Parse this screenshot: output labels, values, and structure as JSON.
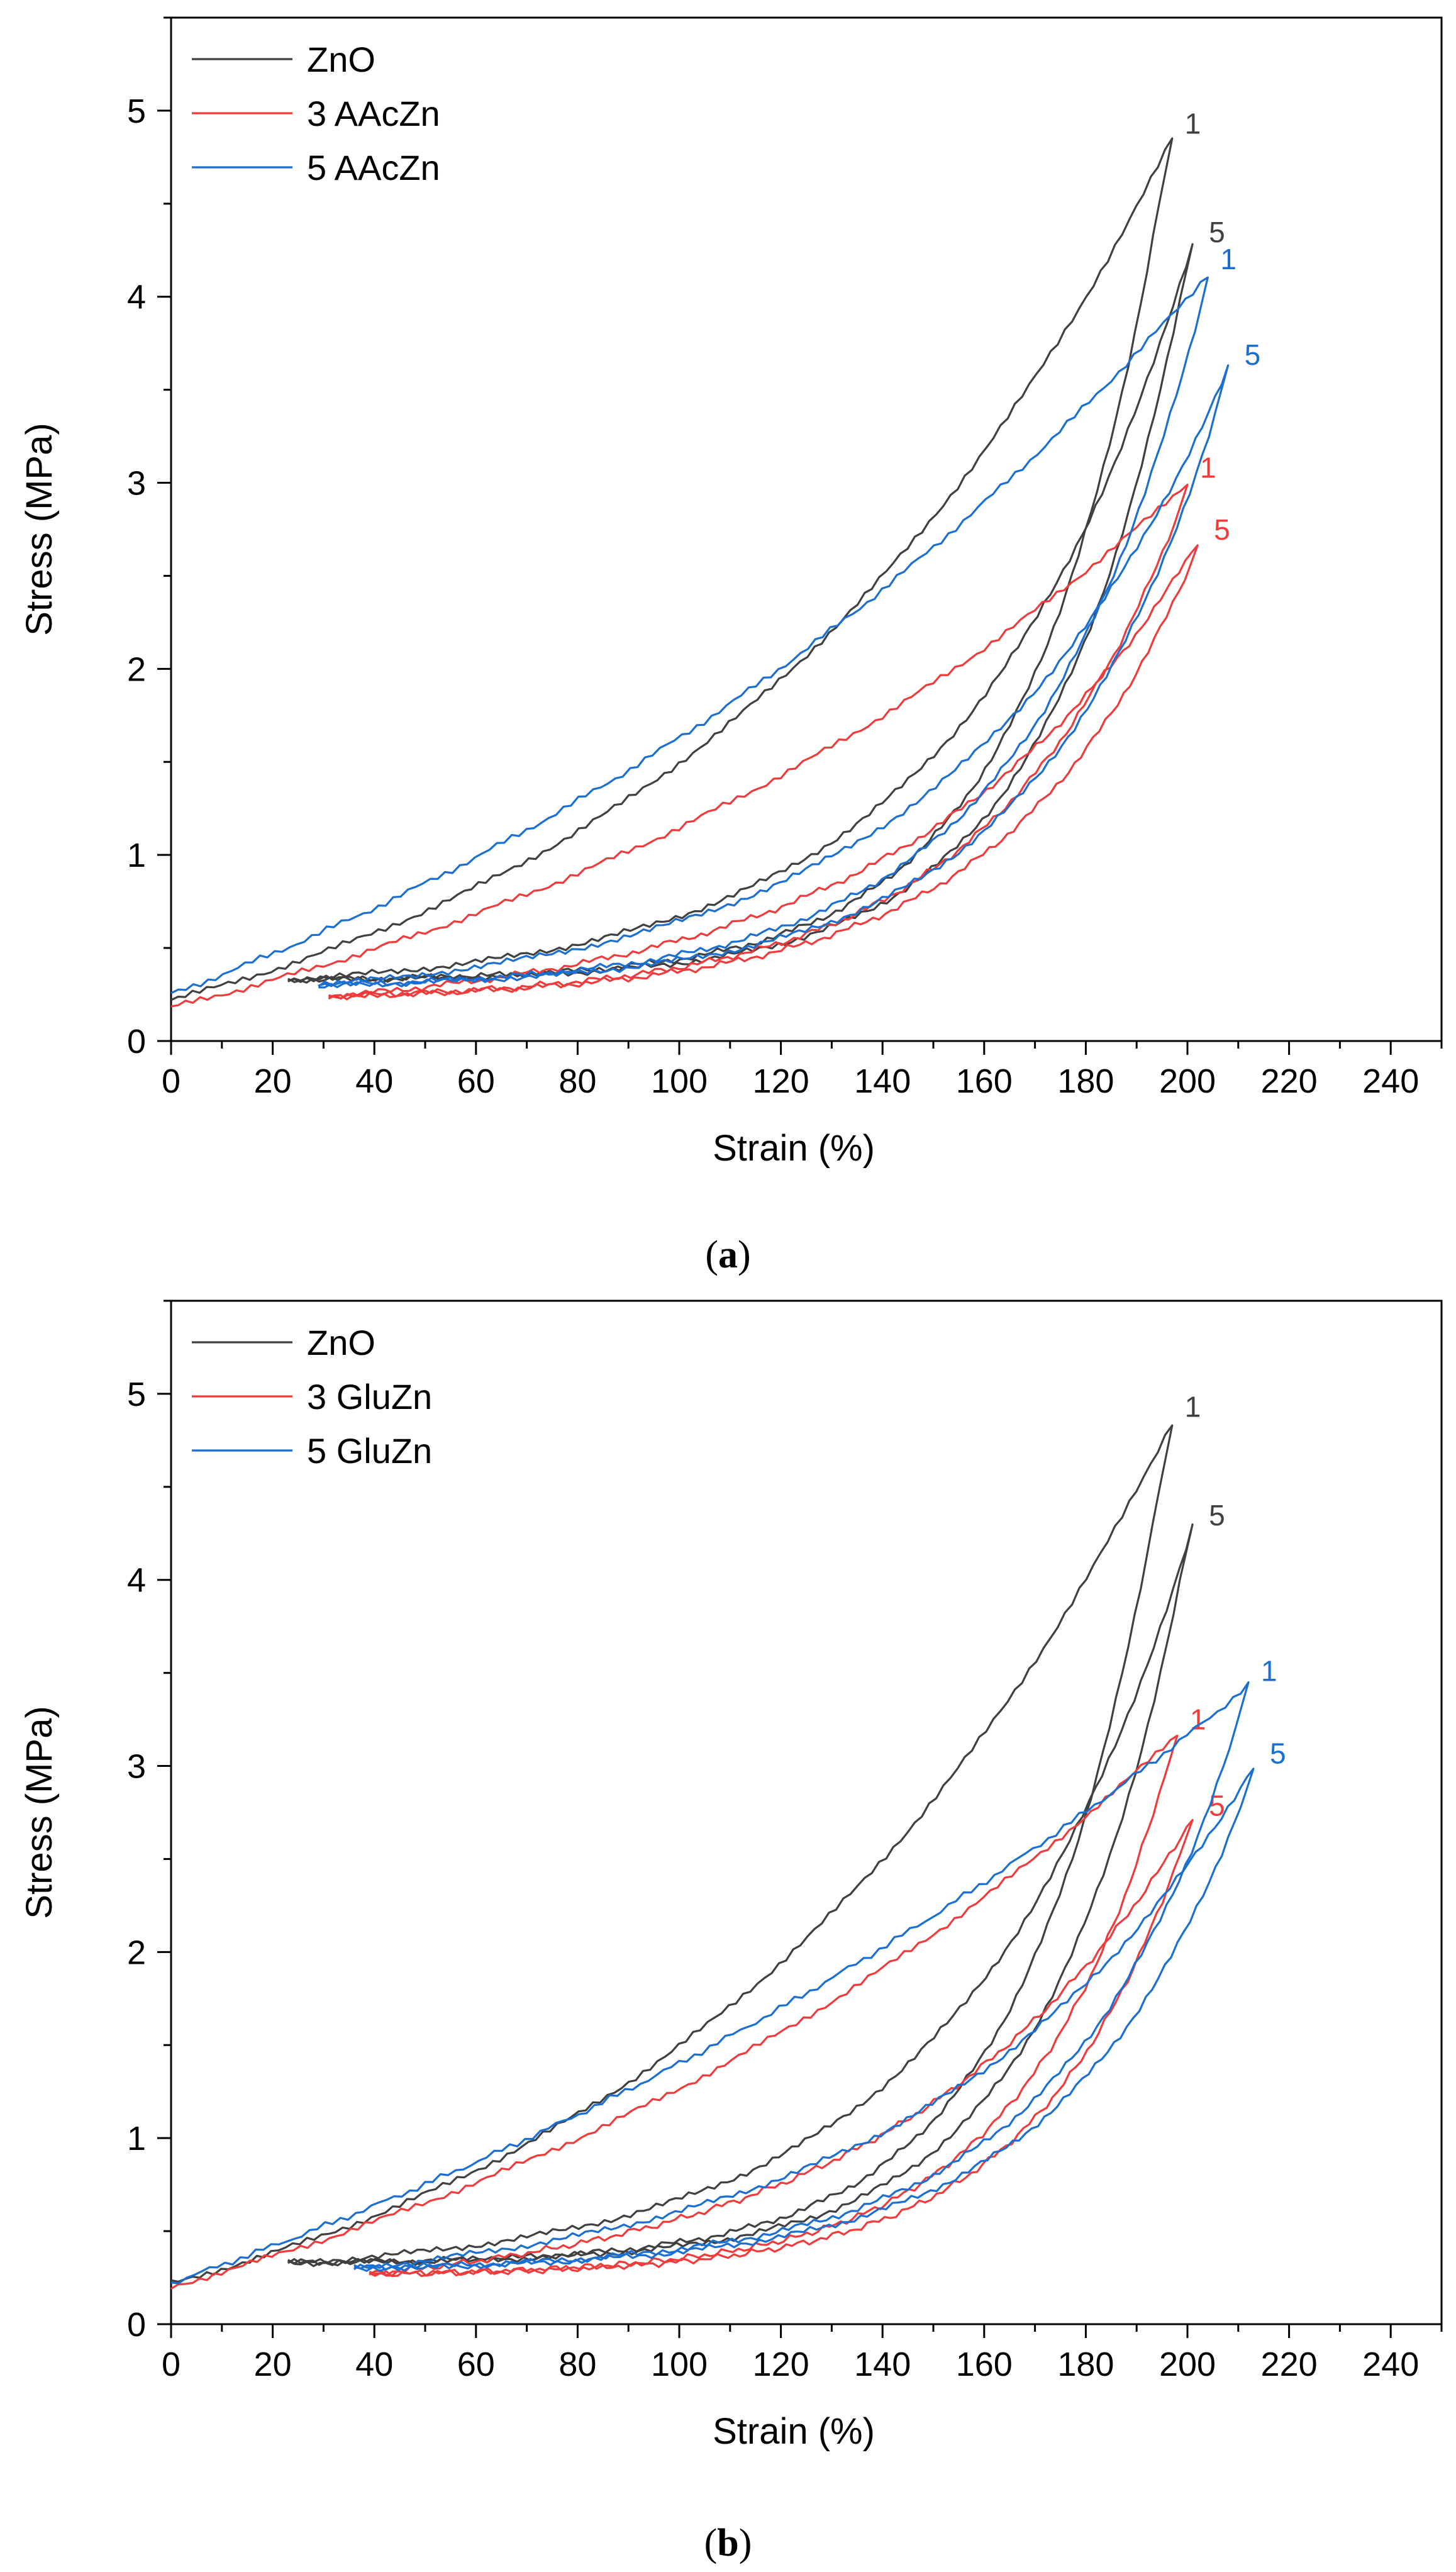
{
  "chart_data": [
    {
      "type": "line",
      "panel_label": "a",
      "xlabel": "Strain (%)",
      "ylabel": "Stress (MPa)",
      "xlim": [
        0,
        250
      ],
      "ylim": [
        0,
        5.5
      ],
      "xticks": [
        0,
        20,
        40,
        60,
        80,
        100,
        120,
        140,
        160,
        180,
        200,
        220,
        240
      ],
      "yticks": [
        0,
        1,
        2,
        3,
        4,
        5
      ],
      "legend_position": "top-left",
      "series": [
        {
          "name": "ZnO",
          "color": "#404040",
          "cycles": [
            {
              "label": "1",
              "x_start": 0,
              "y_start": 0.22,
              "x_max": 197,
              "y_peak": 4.85,
              "x_end": 23,
              "y_end": 0.33,
              "k_load": 2.0,
              "k_unload": 6.5
            },
            {
              "label": "5",
              "x_start": 23,
              "y_start": 0.33,
              "x_max": 201,
              "y_peak": 4.28,
              "x_end": 23,
              "y_end": 0.33,
              "k_load": 4.0,
              "k_unload": 6.5
            }
          ]
        },
        {
          "name": "3 AAcZn",
          "color": "#ef3b3b",
          "cycles": [
            {
              "label": "1",
              "x_start": 0,
              "y_start": 0.18,
              "x_max": 200,
              "y_peak": 3.0,
              "x_end": 31,
              "y_end": 0.24,
              "k_load": 1.3,
              "k_unload": 4.5
            },
            {
              "label": "5",
              "x_start": 31,
              "y_start": 0.24,
              "x_max": 202,
              "y_peak": 2.68,
              "x_end": 31,
              "y_end": 0.24,
              "k_load": 3.0,
              "k_unload": 4.5
            }
          ]
        },
        {
          "name": "5 AAcZn",
          "color": "#1a6fd1",
          "cycles": [
            {
              "label": "1",
              "x_start": 0,
              "y_start": 0.25,
              "x_max": 204,
              "y_peak": 4.12,
              "x_end": 29,
              "y_end": 0.3,
              "k_load": 1.1,
              "k_unload": 5.0
            },
            {
              "label": "5",
              "x_start": 29,
              "y_start": 0.3,
              "x_max": 208,
              "y_peak": 3.62,
              "x_end": 29,
              "y_end": 0.3,
              "k_load": 3.3,
              "k_unload": 5.0
            }
          ]
        }
      ]
    },
    {
      "type": "line",
      "panel_label": "b",
      "xlabel": "Strain (%)",
      "ylabel": "Stress (MPa)",
      "xlim": [
        0,
        250
      ],
      "ylim": [
        0,
        5.5
      ],
      "xticks": [
        0,
        20,
        40,
        60,
        80,
        100,
        120,
        140,
        160,
        180,
        200,
        220,
        240
      ],
      "yticks": [
        0,
        1,
        2,
        3,
        4,
        5
      ],
      "legend_position": "top-left",
      "series": [
        {
          "name": "ZnO",
          "color": "#404040",
          "cycles": [
            {
              "label": "1",
              "x_start": 0,
              "y_start": 0.22,
              "x_max": 197,
              "y_peak": 4.85,
              "x_end": 23,
              "y_end": 0.33,
              "k_load": 2.0,
              "k_unload": 6.5
            },
            {
              "label": "5",
              "x_start": 23,
              "y_start": 0.33,
              "x_max": 201,
              "y_peak": 4.28,
              "x_end": 23,
              "y_end": 0.33,
              "k_load": 4.0,
              "k_unload": 6.5
            }
          ]
        },
        {
          "name": "3 GluZn",
          "color": "#ef3b3b",
          "cycles": [
            {
              "label": "1",
              "x_start": 0,
              "y_start": 0.2,
              "x_max": 198,
              "y_peak": 3.17,
              "x_end": 39,
              "y_end": 0.27,
              "k_load": 1.2,
              "k_unload": 5.5
            },
            {
              "label": "5",
              "x_start": 39,
              "y_start": 0.27,
              "x_max": 201,
              "y_peak": 2.72,
              "x_end": 39,
              "y_end": 0.27,
              "k_load": 2.8,
              "k_unload": 5.5
            }
          ]
        },
        {
          "name": "5 GluZn",
          "color": "#1a6fd1",
          "cycles": [
            {
              "label": "1",
              "x_start": 0,
              "y_start": 0.22,
              "x_max": 212,
              "y_peak": 3.43,
              "x_end": 36,
              "y_end": 0.3,
              "k_load": 0.85,
              "k_unload": 5.0
            },
            {
              "label": "5",
              "x_start": 36,
              "y_start": 0.3,
              "x_max": 213,
              "y_peak": 3.0,
              "x_end": 36,
              "y_end": 0.3,
              "k_load": 2.8,
              "k_unload": 5.0
            }
          ]
        }
      ]
    }
  ]
}
